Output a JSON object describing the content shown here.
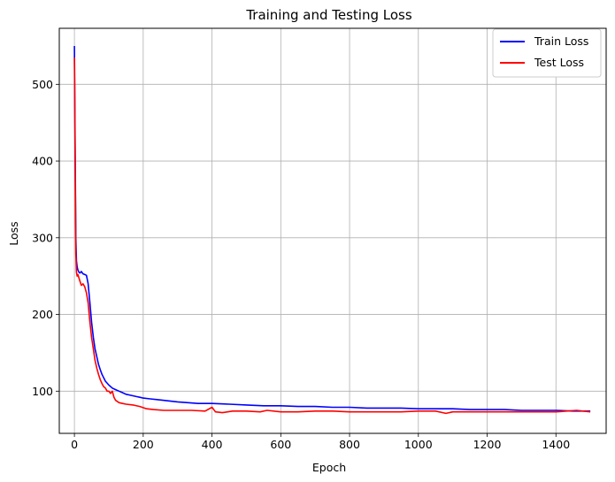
{
  "chart_data": {
    "type": "line",
    "title": "Training and Testing Loss",
    "xlabel": "Epoch",
    "ylabel": "Loss",
    "xlim": [
      -44,
      1546
    ],
    "ylim": [
      45,
      573
    ],
    "xticks": [
      0,
      200,
      400,
      600,
      800,
      1000,
      1200,
      1400
    ],
    "yticks": [
      100,
      200,
      300,
      400,
      500
    ],
    "grid": true,
    "legend_position": "upper right",
    "series": [
      {
        "name": "Train Loss",
        "color": "#0000ff",
        "x": [
          0,
          2,
          4,
          6,
          8,
          10,
          13,
          16,
          20,
          25,
          30,
          35,
          40,
          45,
          50,
          55,
          60,
          65,
          70,
          75,
          80,
          90,
          100,
          110,
          120,
          130,
          140,
          150,
          160,
          170,
          180,
          190,
          200,
          220,
          240,
          260,
          280,
          300,
          330,
          360,
          400,
          450,
          500,
          550,
          600,
          650,
          700,
          750,
          800,
          850,
          900,
          950,
          1000,
          1050,
          1100,
          1150,
          1200,
          1250,
          1300,
          1350,
          1400,
          1450,
          1500
        ],
        "y": [
          550,
          420,
          300,
          270,
          262,
          258,
          255,
          254,
          256,
          253,
          252,
          251,
          240,
          215,
          190,
          170,
          155,
          145,
          135,
          128,
          122,
          113,
          108,
          104,
          102,
          100,
          98,
          96,
          95,
          94,
          93,
          92,
          91,
          90,
          89,
          88,
          87,
          86,
          85,
          84,
          84,
          83,
          82,
          81,
          81,
          80,
          80,
          79,
          79,
          78,
          78,
          78,
          77,
          77,
          77,
          76,
          76,
          76,
          75,
          75,
          75,
          74,
          74
        ]
      },
      {
        "name": "Test Loss",
        "color": "#ff0000",
        "x": [
          0,
          2,
          4,
          6,
          8,
          10,
          15,
          20,
          25,
          30,
          35,
          40,
          45,
          50,
          55,
          60,
          65,
          70,
          75,
          80,
          85,
          90,
          95,
          100,
          105,
          110,
          115,
          120,
          130,
          140,
          150,
          170,
          190,
          210,
          230,
          260,
          300,
          340,
          380,
          400,
          410,
          430,
          460,
          500,
          540,
          560,
          600,
          650,
          700,
          750,
          800,
          850,
          900,
          950,
          1000,
          1050,
          1080,
          1100,
          1150,
          1200,
          1250,
          1300,
          1350,
          1400,
          1460,
          1500
        ],
        "y": [
          535,
          400,
          280,
          255,
          250,
          252,
          245,
          238,
          240,
          236,
          228,
          215,
          190,
          170,
          155,
          140,
          130,
          122,
          115,
          110,
          106,
          104,
          100,
          100,
          97,
          100,
          92,
          88,
          85,
          84,
          83,
          82,
          80,
          77,
          76,
          75,
          75,
          75,
          74,
          79,
          73,
          72,
          74,
          74,
          73,
          75,
          73,
          73,
          74,
          74,
          73,
          73,
          73,
          73,
          74,
          74,
          71,
          73,
          73,
          73,
          73,
          73,
          73,
          73,
          75,
          73
        ]
      }
    ]
  }
}
